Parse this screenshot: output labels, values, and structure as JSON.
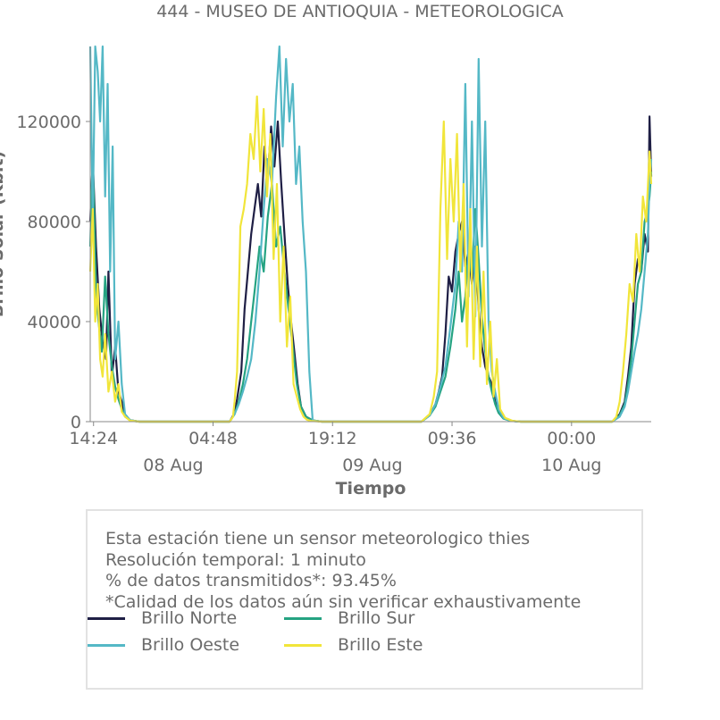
{
  "chart_data": {
    "type": "line",
    "title": "444 - MUSEO DE ANTIOQUIA - METEOROLOGICA",
    "xlabel": "Tiempo",
    "ylabel": "Brillo Solar (Kbit)",
    "ylim": [
      0,
      150000
    ],
    "yticks": [
      0,
      40000,
      80000,
      120000
    ],
    "ytick_labels": [
      "0",
      "40000",
      "80000",
      "120000"
    ],
    "xlim_hours": [
      -0.4,
      67.2
    ],
    "xticks": [
      {
        "hours": 0,
        "label": "14:24"
      },
      {
        "hours": 14.4,
        "label": "04:48"
      },
      {
        "hours": 28.8,
        "label": "19:12"
      },
      {
        "hours": 43.2,
        "label": "09:36"
      },
      {
        "hours": 57.6,
        "label": "00:00"
      }
    ],
    "date_labels": [
      {
        "hours": 9.6,
        "label": "08 Aug"
      },
      {
        "hours": 33.6,
        "label": "09 Aug"
      },
      {
        "hours": 57.6,
        "label": "10 Aug"
      }
    ],
    "grid": false,
    "legend_position": "bottom",
    "series": [
      {
        "name": "Brillo Norte",
        "color": "#1f1f45",
        "x": [
          -0.4,
          -0.1,
          0.3,
          0.7,
          1.1,
          1.5,
          1.8,
          2.2,
          2.6,
          3.0,
          3.4,
          3.8,
          4.4,
          5.5,
          16.4,
          17.0,
          17.3,
          17.8,
          18.2,
          18.6,
          19.0,
          19.4,
          19.8,
          20.2,
          20.6,
          21.0,
          21.4,
          21.8,
          22.2,
          22.6,
          23.0,
          23.4,
          23.8,
          24.2,
          24.6,
          25.0,
          25.6,
          26.4,
          27.5,
          39.5,
          40.5,
          41.2,
          41.6,
          42.0,
          42.4,
          42.8,
          43.2,
          43.6,
          44.0,
          44.4,
          44.8,
          45.2,
          45.6,
          46.0,
          46.4,
          46.8,
          47.2,
          47.6,
          48.0,
          48.4,
          48.8,
          49.4,
          50.3,
          51.5,
          62.5,
          63.4,
          64.0,
          64.4,
          64.8,
          65.2,
          65.6,
          66.0,
          66.4,
          66.8,
          67.0,
          67.2
        ],
        "y": [
          80000,
          105000,
          70000,
          45000,
          32000,
          25000,
          60000,
          18000,
          30000,
          12000,
          8000,
          2500,
          600,
          0,
          0,
          3500,
          9000,
          20000,
          45000,
          60000,
          75000,
          85000,
          95000,
          82000,
          110000,
          98000,
          118000,
          102000,
          120000,
          96000,
          75000,
          55000,
          40000,
          28000,
          15000,
          6000,
          2000,
          500,
          0,
          0,
          2500,
          7000,
          12000,
          18000,
          35000,
          58000,
          52000,
          68000,
          75000,
          80000,
          62000,
          68000,
          55000,
          70000,
          45000,
          30000,
          22000,
          18000,
          15000,
          8000,
          4000,
          1500,
          300,
          0,
          0,
          3000,
          8000,
          18000,
          30000,
          55000,
          65000,
          60000,
          75000,
          68000,
          122000,
          98000
        ]
      },
      {
        "name": "Brillo Sur",
        "color": "#25a382",
        "x": [
          -0.4,
          -0.1,
          0.3,
          0.6,
          1.0,
          1.4,
          1.8,
          2.2,
          2.6,
          3.0,
          3.4,
          3.8,
          4.4,
          5.5,
          16.4,
          17.0,
          17.5,
          18.0,
          18.5,
          19.0,
          19.5,
          20.0,
          20.5,
          21.0,
          21.5,
          22.0,
          22.5,
          23.0,
          23.5,
          24.0,
          24.5,
          25.0,
          25.6,
          26.4,
          27.5,
          39.5,
          40.5,
          41.2,
          41.8,
          42.4,
          43.0,
          43.6,
          44.0,
          44.4,
          44.8,
          45.2,
          45.6,
          46.0,
          46.4,
          46.8,
          47.2,
          47.6,
          48.0,
          48.4,
          48.8,
          49.4,
          50.3,
          51.5,
          62.5,
          63.4,
          64.0,
          64.4,
          64.8,
          65.2,
          65.6,
          66.0,
          66.4,
          66.8,
          67.0,
          67.2
        ],
        "y": [
          70000,
          108000,
          52000,
          40000,
          28000,
          58000,
          35000,
          22000,
          14000,
          9000,
          5000,
          2000,
          500,
          0,
          0,
          3000,
          8000,
          15000,
          25000,
          40000,
          55000,
          70000,
          60000,
          82000,
          95000,
          70000,
          78000,
          60000,
          45000,
          30000,
          15000,
          6000,
          2000,
          500,
          0,
          0,
          2500,
          6000,
          12000,
          18000,
          30000,
          45000,
          60000,
          40000,
          50000,
          70000,
          58000,
          85000,
          65000,
          42000,
          28000,
          18000,
          12000,
          7000,
          3500,
          1200,
          300,
          0,
          0,
          2500,
          7000,
          15000,
          25000,
          40000,
          55000,
          60000,
          80000,
          85000,
          90000,
          100000
        ]
      },
      {
        "name": "Brillo Oeste",
        "color": "#54b8c6",
        "x": [
          -0.4,
          -0.1,
          0.2,
          0.5,
          0.8,
          1.1,
          1.4,
          1.7,
          2.0,
          2.3,
          2.6,
          3.0,
          3.4,
          3.8,
          4.4,
          5.5,
          16.4,
          17.0,
          17.5,
          18.0,
          18.5,
          19.0,
          19.5,
          20.0,
          20.5,
          21.0,
          21.5,
          22.0,
          22.4,
          22.8,
          23.2,
          23.6,
          24.0,
          24.4,
          24.8,
          25.2,
          25.6,
          26.0,
          26.4,
          27.5,
          39.5,
          40.5,
          41.2,
          41.8,
          42.4,
          43.0,
          43.6,
          44.0,
          44.4,
          44.8,
          45.2,
          45.6,
          46.0,
          46.4,
          46.8,
          47.2,
          47.6,
          48.0,
          48.4,
          48.8,
          49.4,
          50.3,
          51.5,
          62.5,
          63.4,
          64.0,
          64.4,
          64.8,
          65.2,
          65.6,
          66.0,
          66.4,
          66.8,
          67.0,
          67.2
        ],
        "y": [
          150000,
          80000,
          150000,
          140000,
          120000,
          150000,
          90000,
          135000,
          60000,
          110000,
          25000,
          40000,
          15000,
          3000,
          600,
          0,
          0,
          3000,
          7000,
          12000,
          18000,
          25000,
          40000,
          60000,
          85000,
          105000,
          95000,
          130000,
          150000,
          110000,
          145000,
          120000,
          135000,
          95000,
          110000,
          80000,
          60000,
          20000,
          500,
          0,
          0,
          2500,
          7000,
          14000,
          22000,
          38000,
          55000,
          80000,
          60000,
          135000,
          50000,
          120000,
          42000,
          145000,
          70000,
          120000,
          40000,
          20000,
          12000,
          5000,
          1500,
          300,
          0,
          0,
          2000,
          6000,
          12000,
          20000,
          28000,
          35000,
          45000,
          60000,
          75000,
          95000,
          105000
        ]
      },
      {
        "name": "Brillo Este",
        "color": "#f1e53a",
        "x": [
          -0.4,
          -0.1,
          0.2,
          0.5,
          0.8,
          1.1,
          1.4,
          1.8,
          2.2,
          2.6,
          3.0,
          3.4,
          3.8,
          4.4,
          5.5,
          16.4,
          16.8,
          17.0,
          17.3,
          17.7,
          18.1,
          18.5,
          18.9,
          19.3,
          19.7,
          20.1,
          20.5,
          20.9,
          21.3,
          21.7,
          22.1,
          22.5,
          22.9,
          23.3,
          23.7,
          24.1,
          24.5,
          24.9,
          25.3,
          25.7,
          26.2,
          27.5,
          39.5,
          40.5,
          41.0,
          41.4,
          41.8,
          42.2,
          42.6,
          43.0,
          43.4,
          43.8,
          44.2,
          44.6,
          45.0,
          45.4,
          45.8,
          46.2,
          46.6,
          47.0,
          47.4,
          47.8,
          48.2,
          48.6,
          49.0,
          49.6,
          50.5,
          51.5,
          62.5,
          63.0,
          63.4,
          63.8,
          64.2,
          64.6,
          65.0,
          65.4,
          65.8,
          66.2,
          66.6,
          67.0,
          67.2
        ],
        "y": [
          60000,
          85000,
          40000,
          55000,
          25000,
          18000,
          35000,
          12000,
          20000,
          8000,
          15000,
          4000,
          2000,
          400,
          0,
          0,
          2000,
          8000,
          20000,
          78000,
          85000,
          95000,
          115000,
          105000,
          130000,
          100000,
          125000,
          90000,
          115000,
          65000,
          95000,
          40000,
          70000,
          30000,
          50000,
          15000,
          10000,
          5000,
          2000,
          800,
          300,
          0,
          0,
          3000,
          10000,
          20000,
          85000,
          120000,
          65000,
          105000,
          80000,
          115000,
          60000,
          95000,
          30000,
          85000,
          25000,
          70000,
          22000,
          60000,
          15000,
          40000,
          10000,
          25000,
          5000,
          1500,
          300,
          0,
          0,
          2000,
          8000,
          20000,
          35000,
          55000,
          48000,
          75000,
          60000,
          90000,
          80000,
          108000,
          95000
        ]
      }
    ]
  },
  "info": {
    "line1": "Esta estación tiene un sensor meteorologico thies",
    "line2": "Resolución temporal: 1 minuto",
    "line3": "% de datos transmitidos*: 93.45%",
    "line4": "*Calidad de los datos aún sin verificar exhaustivamente"
  }
}
